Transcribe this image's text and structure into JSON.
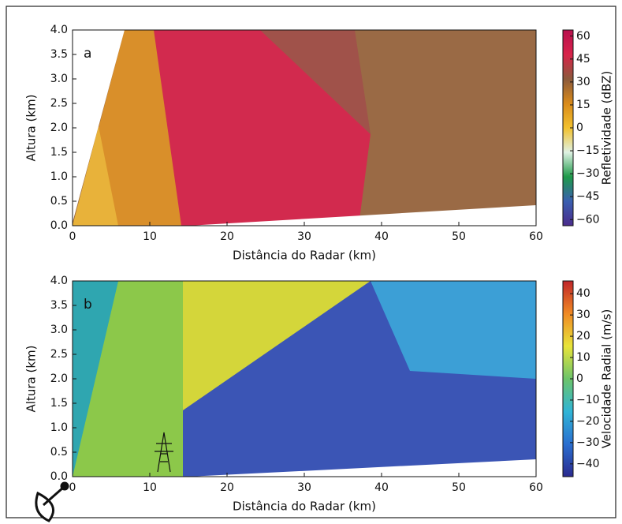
{
  "chart_data": [
    {
      "type": "heatmap",
      "panel_label": "a",
      "xlabel": "Distância do Radar (km)",
      "ylabel": "Altura (km)",
      "xlim": [
        0,
        60
      ],
      "xticks": [
        0,
        10,
        20,
        30,
        40,
        50,
        60
      ],
      "ylim": [
        0,
        4
      ],
      "yticks": [
        {
          "value": 0,
          "label": "0.0"
        },
        {
          "value": 0.5,
          "label": "0.5"
        },
        {
          "value": 1,
          "label": "1.0"
        },
        {
          "value": 1.5,
          "label": "1.5"
        },
        {
          "value": 2,
          "label": "2.0"
        },
        {
          "value": 2.5,
          "label": "2.5"
        },
        {
          "value": 3,
          "label": "3.0"
        },
        {
          "value": 3.5,
          "label": "3.5"
        },
        {
          "value": 4,
          "label": "4.0"
        }
      ],
      "colorbar": {
        "label": "Refletividade (dBZ)",
        "lim": [
          -64,
          64
        ],
        "ticks": [
          60,
          45,
          30,
          15,
          0,
          {
            "value": -15,
            "label": "−15"
          },
          {
            "value": -30,
            "label": "−30"
          },
          {
            "value": -45,
            "label": "−45"
          },
          {
            "value": -60,
            "label": "−60"
          }
        ],
        "colors": [
          "#4b2c8c",
          "#3a5fb0",
          "#1f9a4a",
          "#dff2e4",
          "#f2c12e",
          "#d98a1a",
          "#8c5a3c",
          "#d8234a",
          "#b8104e"
        ]
      }
    },
    {
      "type": "heatmap",
      "panel_label": "b",
      "xlabel": "Distância do Radar (km)",
      "ylabel": "Altura (km)",
      "xlim": [
        0,
        60
      ],
      "xticks": [
        0,
        10,
        20,
        30,
        40,
        50,
        60
      ],
      "ylim": [
        0,
        4
      ],
      "yticks": [
        {
          "value": 0,
          "label": "0.0"
        },
        {
          "value": 0.5,
          "label": "0.5"
        },
        {
          "value": 1,
          "label": "1.0"
        },
        {
          "value": 1.5,
          "label": "1.5"
        },
        {
          "value": 2,
          "label": "2.0"
        },
        {
          "value": 2.5,
          "label": "2.5"
        },
        {
          "value": 3,
          "label": "3.0"
        },
        {
          "value": 3.5,
          "label": "3.5"
        },
        {
          "value": 4,
          "label": "4.0"
        }
      ],
      "colorbar": {
        "label": "Velocidade Radial (m/s)",
        "lim": [
          -46,
          46
        ],
        "ticks": [
          40,
          30,
          20,
          10,
          0,
          {
            "value": -10,
            "label": "−10"
          },
          {
            "value": -20,
            "label": "−20"
          },
          {
            "value": -30,
            "label": "−30"
          },
          {
            "value": -40,
            "label": "−40"
          }
        ],
        "colors": [
          "#2b2a8f",
          "#2a6fd0",
          "#31b5d6",
          "#6cc46a",
          "#e8e43a",
          "#f08a24",
          "#c0262a"
        ]
      }
    }
  ]
}
